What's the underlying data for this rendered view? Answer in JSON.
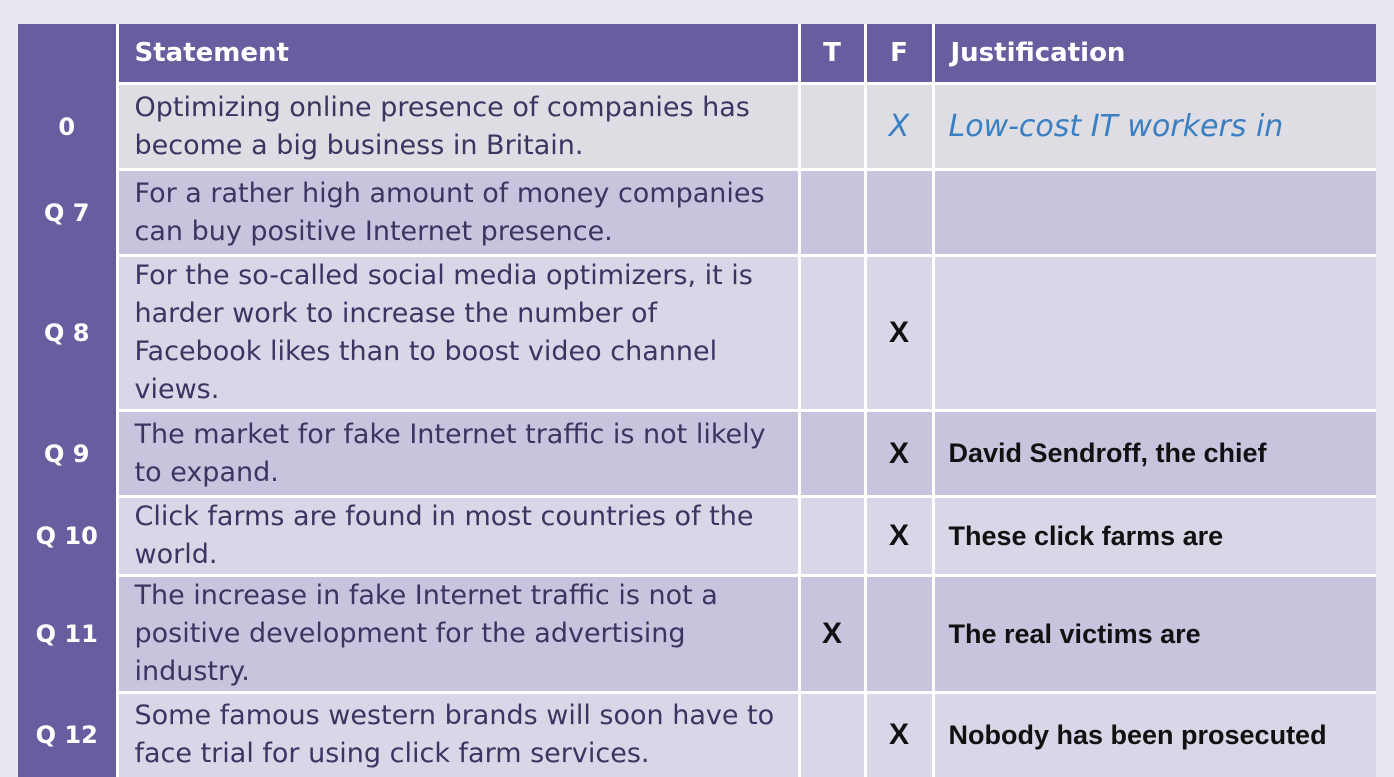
{
  "headers": {
    "question": "",
    "statement": "Statement",
    "true": "T",
    "false": "F",
    "justification": "Justification"
  },
  "rows": [
    {
      "id": "0",
      "statement": "Optimizing online presence of companies has become a big business in Britain.",
      "t": "",
      "f": "X",
      "justification": "Low-cost IT workers in",
      "handwritten": true
    },
    {
      "id": "Q 7",
      "statement": "For a rather high amount of money companies can buy positive Internet presence.",
      "t": "",
      "f": "",
      "justification": ""
    },
    {
      "id": "Q 8",
      "statement": "For the so-called social media optimizers, it is harder work to increase the number of Facebook likes than to boost video channel views.",
      "t": "",
      "f": "X",
      "justification": ""
    },
    {
      "id": "Q 9",
      "statement": "The market for fake Internet traffic is not likely to expand.",
      "t": "",
      "f": "X",
      "justification": "David Sendroff, the chief"
    },
    {
      "id": "Q 10",
      "statement": "Click farms are found in most countries of the world.",
      "t": "",
      "f": "X",
      "justification": "These click farms are"
    },
    {
      "id": "Q 11",
      "statement": "The increase in fake Internet traffic is not a positive development for the advertising industry.",
      "t": "X",
      "f": "",
      "justification": "The real victims are"
    },
    {
      "id": "Q 12",
      "statement": "Some famous western brands will soon have to face trial for using click farm services.",
      "t": "",
      "f": "X",
      "justification": "Nobody has been prosecuted"
    }
  ],
  "colors": {
    "header_purple": "#6a5d9f",
    "row_gray": "#dedde3",
    "row_dark": "#c9c4de",
    "row_light": "#dad6e8",
    "handwriting_blue": "#3a7fc2"
  }
}
